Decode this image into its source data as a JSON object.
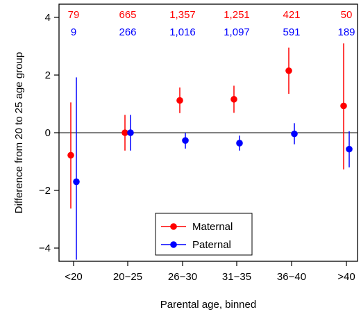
{
  "chart_data": {
    "type": "scatter",
    "title": "",
    "xlabel": "Parental age, binned",
    "ylabel": "Difference from 20 to 25 age group",
    "categories": [
      "<20",
      "20−25",
      "26−30",
      "31−35",
      "36−40",
      ">40"
    ],
    "ylim": [
      -4.4,
      4.4
    ],
    "yticks": [
      -4,
      -2,
      0,
      2,
      4
    ],
    "ytick_labels": [
      "−4",
      "−2",
      "0",
      "2",
      "4"
    ],
    "reference_line": 0,
    "legend_position": "bottom-center",
    "series": [
      {
        "name": "Maternal",
        "color": "#ff0000",
        "values": [
          -0.78,
          0.0,
          1.12,
          1.16,
          2.15,
          0.93
        ],
        "lower": [
          -2.63,
          -0.62,
          0.68,
          0.69,
          1.35,
          -1.27
        ],
        "upper": [
          1.05,
          0.62,
          1.57,
          1.63,
          2.95,
          3.1
        ],
        "counts": [
          "79",
          "665",
          "1,357",
          "1,251",
          "421",
          "50"
        ]
      },
      {
        "name": "Paternal",
        "color": "#0000ff",
        "values": [
          -1.7,
          0.0,
          -0.27,
          -0.36,
          -0.04,
          -0.57
        ],
        "lower": [
          -4.4,
          -0.62,
          -0.55,
          -0.62,
          -0.4,
          -1.2
        ],
        "upper": [
          1.92,
          0.62,
          0.0,
          -0.1,
          0.33,
          0.05
        ],
        "counts": [
          "9",
          "266",
          "1,016",
          "1,097",
          "591",
          "189"
        ]
      }
    ]
  }
}
